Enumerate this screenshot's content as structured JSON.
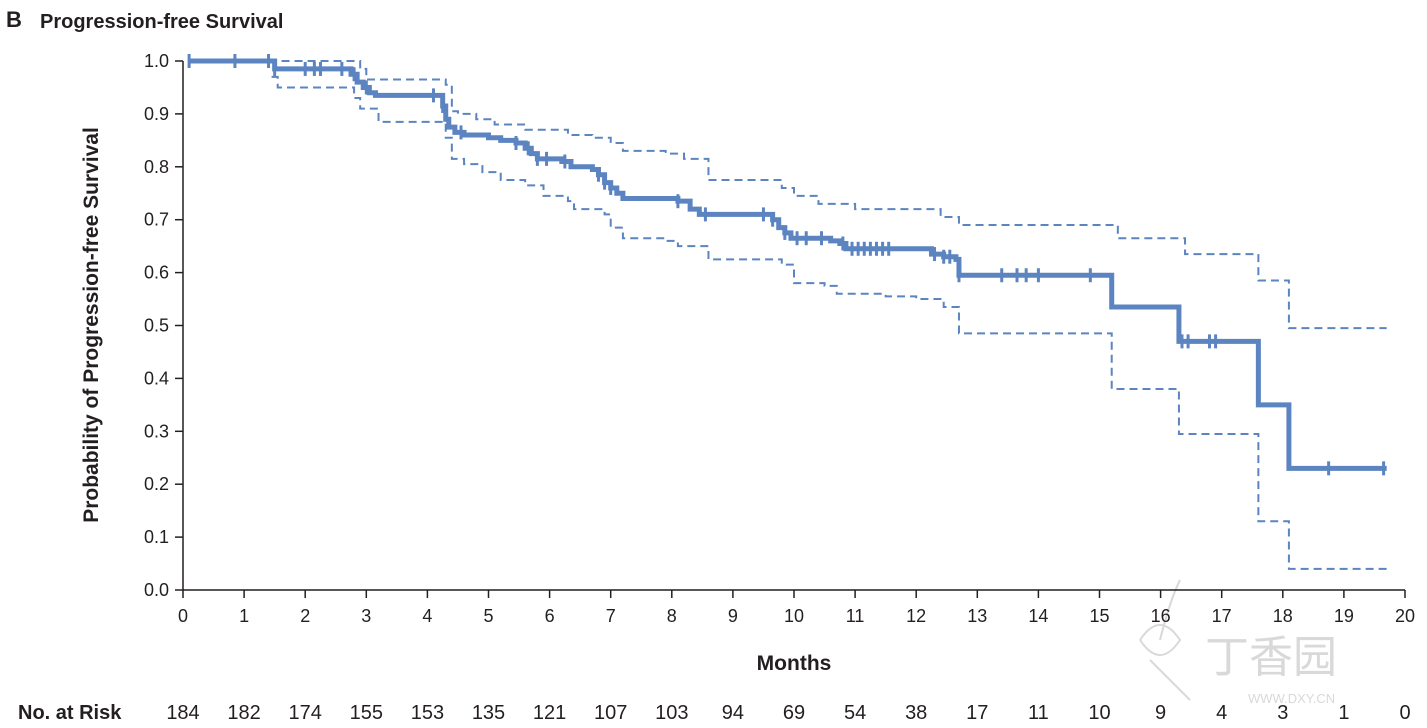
{
  "panel": {
    "letter": "B",
    "title": "Progression-free Survival"
  },
  "colors": {
    "curve": "#5b84c0",
    "axis": "#231f20",
    "watermark": "#d9d9d9"
  },
  "watermark": {
    "text": "丁香园",
    "url": "WWW.DXY.CN"
  },
  "chart_data": {
    "type": "line",
    "style": "kaplan-meier step curve with dashed confidence bands and censor ticks",
    "ylabel": "Probability of Progression-free Survival",
    "xlabel": "Months",
    "xlim": [
      0,
      20
    ],
    "ylim": [
      0,
      1.0
    ],
    "x_ticks": [
      0,
      1,
      2,
      3,
      4,
      5,
      6,
      7,
      8,
      9,
      10,
      11,
      12,
      13,
      14,
      15,
      16,
      17,
      18,
      19,
      20
    ],
    "y_ticks": [
      "0.0",
      "0.1",
      "0.2",
      "0.3",
      "0.4",
      "0.5",
      "0.6",
      "0.7",
      "0.8",
      "0.9",
      "1.0"
    ],
    "grid": false,
    "series": [
      {
        "role": "estimate",
        "line": "solid",
        "steps": [
          [
            0.1,
            1.0
          ],
          [
            1.45,
            1.0
          ],
          [
            1.5,
            0.985
          ],
          [
            2.7,
            0.985
          ],
          [
            2.75,
            0.975
          ],
          [
            2.85,
            0.96
          ],
          [
            2.95,
            0.95
          ],
          [
            3.05,
            0.94
          ],
          [
            3.15,
            0.935
          ],
          [
            4.2,
            0.935
          ],
          [
            4.25,
            0.915
          ],
          [
            4.3,
            0.89
          ],
          [
            4.35,
            0.875
          ],
          [
            4.45,
            0.865
          ],
          [
            4.6,
            0.86
          ],
          [
            5.0,
            0.855
          ],
          [
            5.2,
            0.85
          ],
          [
            5.45,
            0.845
          ],
          [
            5.6,
            0.835
          ],
          [
            5.7,
            0.825
          ],
          [
            5.8,
            0.815
          ],
          [
            6.2,
            0.81
          ],
          [
            6.35,
            0.8
          ],
          [
            6.7,
            0.795
          ],
          [
            6.8,
            0.785
          ],
          [
            6.9,
            0.77
          ],
          [
            7.0,
            0.76
          ],
          [
            7.1,
            0.75
          ],
          [
            7.2,
            0.74
          ],
          [
            8.1,
            0.735
          ],
          [
            8.3,
            0.72
          ],
          [
            8.45,
            0.71
          ],
          [
            9.5,
            0.71
          ],
          [
            9.65,
            0.7
          ],
          [
            9.75,
            0.685
          ],
          [
            9.85,
            0.675
          ],
          [
            9.95,
            0.665
          ],
          [
            10.6,
            0.66
          ],
          [
            10.75,
            0.655
          ],
          [
            10.85,
            0.645
          ],
          [
            11.3,
            0.645
          ],
          [
            12.25,
            0.635
          ],
          [
            12.45,
            0.63
          ],
          [
            12.65,
            0.625
          ],
          [
            12.7,
            0.595
          ],
          [
            15.2,
            0.595
          ],
          [
            15.2,
            0.535
          ],
          [
            16.3,
            0.535
          ],
          [
            16.3,
            0.47
          ],
          [
            17.6,
            0.47
          ],
          [
            17.6,
            0.35
          ],
          [
            18.1,
            0.35
          ],
          [
            18.1,
            0.23
          ],
          [
            19.7,
            0.23
          ]
        ],
        "censor_x": [
          0.1,
          0.85,
          1.4,
          1.5,
          2.0,
          2.15,
          2.25,
          2.6,
          2.8,
          3.0,
          4.1,
          4.25,
          4.55,
          5.45,
          5.65,
          5.8,
          5.95,
          6.25,
          6.8,
          6.9,
          7.0,
          8.1,
          8.55,
          9.5,
          9.65,
          9.85,
          10.05,
          10.2,
          10.45,
          10.8,
          10.95,
          11.05,
          11.15,
          11.25,
          11.35,
          11.45,
          11.55,
          12.3,
          12.45,
          12.55,
          12.7,
          13.4,
          13.65,
          13.8,
          14.0,
          14.85,
          16.35,
          16.45,
          16.8,
          16.9,
          18.75,
          19.65
        ]
      },
      {
        "role": "upper bound",
        "line": "dashed",
        "steps": [
          [
            1.4,
            1.0
          ],
          [
            2.7,
            1.0
          ],
          [
            2.9,
            0.985
          ],
          [
            3.0,
            0.965
          ],
          [
            4.2,
            0.965
          ],
          [
            4.3,
            0.955
          ],
          [
            4.4,
            0.905
          ],
          [
            4.5,
            0.9
          ],
          [
            4.8,
            0.89
          ],
          [
            5.1,
            0.88
          ],
          [
            5.6,
            0.87
          ],
          [
            6.3,
            0.86
          ],
          [
            6.7,
            0.855
          ],
          [
            7.0,
            0.845
          ],
          [
            7.2,
            0.83
          ],
          [
            7.9,
            0.825
          ],
          [
            8.2,
            0.815
          ],
          [
            8.6,
            0.79
          ],
          [
            8.6,
            0.775
          ],
          [
            9.7,
            0.775
          ],
          [
            9.8,
            0.76
          ],
          [
            10.0,
            0.745
          ],
          [
            10.4,
            0.73
          ],
          [
            11.0,
            0.72
          ],
          [
            12.3,
            0.72
          ],
          [
            12.4,
            0.705
          ],
          [
            12.7,
            0.69
          ],
          [
            15.2,
            0.69
          ],
          [
            15.3,
            0.665
          ],
          [
            16.3,
            0.665
          ],
          [
            16.4,
            0.635
          ],
          [
            17.6,
            0.635
          ],
          [
            17.6,
            0.585
          ],
          [
            18.1,
            0.585
          ],
          [
            18.1,
            0.495
          ],
          [
            19.7,
            0.495
          ]
        ]
      },
      {
        "role": "lower bound",
        "line": "dashed",
        "steps": [
          [
            1.45,
            0.97
          ],
          [
            1.55,
            0.95
          ],
          [
            2.7,
            0.95
          ],
          [
            2.8,
            0.93
          ],
          [
            2.9,
            0.91
          ],
          [
            3.2,
            0.885
          ],
          [
            4.2,
            0.885
          ],
          [
            4.3,
            0.855
          ],
          [
            4.4,
            0.815
          ],
          [
            4.6,
            0.805
          ],
          [
            4.9,
            0.79
          ],
          [
            5.2,
            0.775
          ],
          [
            5.6,
            0.765
          ],
          [
            5.9,
            0.745
          ],
          [
            6.3,
            0.735
          ],
          [
            6.4,
            0.72
          ],
          [
            6.9,
            0.71
          ],
          [
            7.0,
            0.685
          ],
          [
            7.2,
            0.665
          ],
          [
            7.9,
            0.66
          ],
          [
            8.1,
            0.65
          ],
          [
            8.6,
            0.635
          ],
          [
            8.6,
            0.625
          ],
          [
            9.6,
            0.625
          ],
          [
            9.8,
            0.615
          ],
          [
            10.0,
            0.58
          ],
          [
            10.5,
            0.575
          ],
          [
            10.7,
            0.56
          ],
          [
            11.5,
            0.555
          ],
          [
            12.0,
            0.55
          ],
          [
            12.45,
            0.535
          ],
          [
            12.7,
            0.485
          ],
          [
            15.2,
            0.485
          ],
          [
            15.2,
            0.38
          ],
          [
            16.3,
            0.38
          ],
          [
            16.3,
            0.295
          ],
          [
            17.6,
            0.295
          ],
          [
            17.6,
            0.13
          ],
          [
            18.1,
            0.13
          ],
          [
            18.1,
            0.04
          ],
          [
            19.7,
            0.04
          ]
        ]
      }
    ],
    "at_risk": {
      "label": "No. at Risk",
      "values": [
        "184",
        "182",
        "174",
        "155",
        "153",
        "135",
        "121",
        "107",
        "103",
        "94",
        "69",
        "54",
        "38",
        "17",
        "11",
        "10",
        "9",
        "4",
        "3",
        "1",
        "0"
      ]
    }
  }
}
